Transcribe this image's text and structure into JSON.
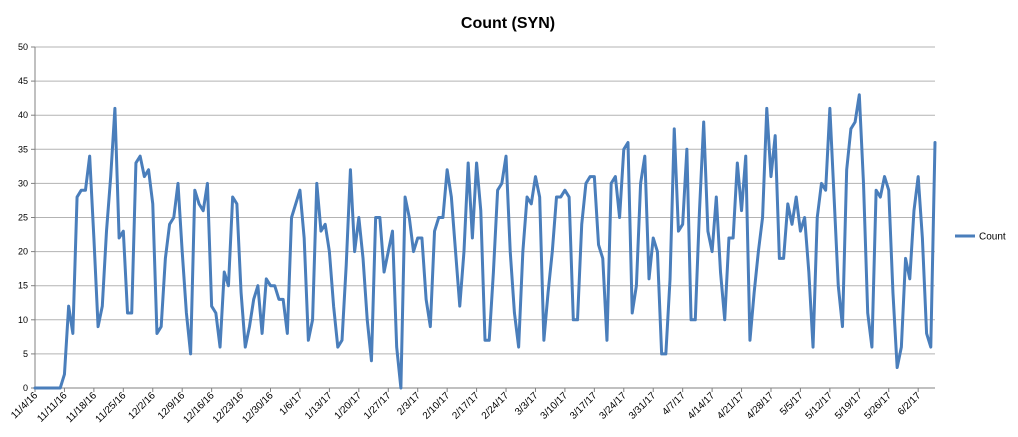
{
  "chart_data": {
    "type": "line",
    "title": "Count (SYN)",
    "xlabel": "",
    "ylabel": "",
    "ylim": [
      0,
      50
    ],
    "yticks": [
      0,
      5,
      10,
      15,
      20,
      25,
      30,
      35,
      40,
      45,
      50
    ],
    "grid": "horizontal",
    "legend_position": "right",
    "x_start": "11/4/16",
    "x_end": "6/5/17",
    "x_ticks": [
      "11/4/16",
      "11/11/16",
      "11/18/16",
      "11/25/16",
      "12/2/16",
      "12/9/16",
      "12/16/16",
      "12/23/16",
      "12/30/16",
      "1/6/17",
      "1/13/17",
      "1/20/17",
      "1/27/17",
      "2/3/17",
      "2/10/17",
      "2/17/17",
      "2/24/17",
      "3/3/17",
      "3/10/17",
      "3/17/17",
      "3/24/17",
      "3/31/17",
      "4/7/17",
      "4/14/17",
      "4/21/17",
      "4/28/17",
      "5/5/17",
      "5/12/17",
      "5/19/17",
      "5/26/17",
      "6/2/17"
    ],
    "series": [
      {
        "name": "Count",
        "color": "#4a7ebb",
        "values": [
          0,
          0,
          0,
          0,
          0,
          0,
          0,
          2,
          12,
          8,
          28,
          29,
          29,
          34,
          22,
          9,
          12,
          23,
          31,
          41,
          22,
          23,
          11,
          11,
          33,
          34,
          31,
          32,
          27,
          8,
          9,
          19,
          24,
          25,
          30,
          20,
          11,
          5,
          29,
          27,
          26,
          30,
          12,
          11,
          6,
          17,
          15,
          28,
          27,
          14,
          6,
          9,
          13,
          15,
          8,
          16,
          15,
          15,
          13,
          13,
          8,
          25,
          27,
          29,
          22,
          7,
          10,
          30,
          23,
          24,
          20,
          12,
          6,
          7,
          18,
          32,
          20,
          25,
          19,
          10,
          4,
          25,
          25,
          17,
          20,
          23,
          6,
          0,
          28,
          25,
          20,
          22,
          22,
          13,
          9,
          23,
          25,
          25,
          32,
          28,
          20,
          12,
          20,
          33,
          22,
          33,
          26,
          7,
          7,
          17,
          29,
          30,
          34,
          20,
          11,
          6,
          20,
          28,
          27,
          31,
          28,
          7,
          14,
          20,
          28,
          28,
          29,
          28,
          10,
          10,
          24,
          30,
          31,
          31,
          21,
          19,
          7,
          30,
          31,
          25,
          35,
          36,
          11,
          15,
          30,
          34,
          16,
          22,
          20,
          5,
          5,
          16,
          38,
          23,
          24,
          35,
          10,
          10,
          26,
          39,
          23,
          20,
          28,
          17,
          10,
          22,
          22,
          33,
          26,
          34,
          7,
          14,
          20,
          25,
          41,
          31,
          37,
          19,
          19,
          27,
          24,
          28,
          23,
          25,
          17,
          6,
          25,
          30,
          29,
          41,
          28,
          15,
          9,
          32,
          38,
          39,
          43,
          30,
          11,
          6,
          29,
          28,
          31,
          29,
          14,
          3,
          6,
          19,
          16,
          26,
          31,
          22,
          8,
          6,
          36
        ]
      }
    ],
    "legend": [
      "Count"
    ]
  }
}
